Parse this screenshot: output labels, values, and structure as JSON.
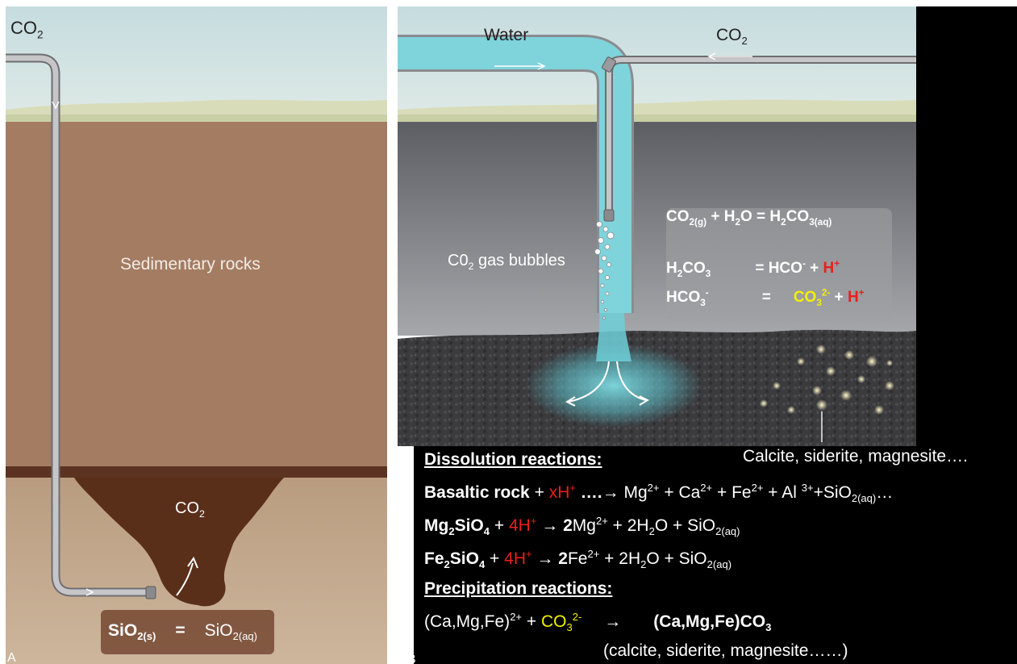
{
  "panel_a": {
    "corner_letter": "A",
    "co2_top": {
      "main": "CO",
      "sub": "2"
    },
    "rock_label": "Sedimentary rocks",
    "plume_co2": {
      "main": "CO",
      "sub": "2"
    },
    "bottom_eq": {
      "lhs": "SiO",
      "lhs_sub": "2(s)",
      "equals": "=",
      "rhs": "SiO",
      "rhs_sub": "2(aq)"
    }
  },
  "panel_b": {
    "corner_letter": "B",
    "water_label": "Water",
    "co2_label": {
      "main": "CO",
      "sub": "2"
    },
    "bubbles_label": {
      "pre": "C0",
      "sub": "2",
      "post": " gas bubbles"
    },
    "eq1": {
      "a": "CO",
      "a_sub": "2(g)",
      "b": " + H",
      "b_sub": "2",
      "c": "O = H",
      "c_sub": "2",
      "d": "CO",
      "d_sub": "3(aq)"
    },
    "eq2": {
      "a": "H",
      "a_sub": "2",
      "b": "CO",
      "b_sub": "3",
      "c": "= HCO",
      "c_sup": "-",
      "d": " + ",
      "h": "H",
      "h_sup": "+"
    },
    "eq3": {
      "a": "HCO",
      "a_sub": "3",
      "a_sup": "-",
      "eqsign": "=",
      "b": "CO",
      "b_sub": "3",
      "b_sup": "2-",
      "c": " + ",
      "h": "H",
      "h_sup": "+"
    },
    "minerals_callout": "Calcite, siderite, magnesite….",
    "dissolution_heading": "Dissolution reactions:",
    "rxn1": {
      "name": "Basaltic rock",
      "plus": " + ",
      "xh": "xH",
      "xh_sup": "+",
      "arrow": " ….→ ",
      "mg": "Mg",
      "mg_sup": "2+",
      "ca": " + Ca",
      "ca_sup": "2+",
      "fe": " + Fe",
      "fe_sup": "2+",
      "al": " + Al ",
      "al_sup": "3+",
      "si": "+SiO",
      "si_sub": "2(aq)",
      "tail": "…"
    },
    "rxn2": {
      "a": "Mg",
      "a_sub": "2",
      "b": "SiO",
      "b_sub": "4",
      "plus": " + ",
      "h": "4H",
      "h_sup": "+",
      "arrow": " → ",
      "c": "2",
      "d": "Mg",
      "d_sup": "2+",
      "e": " + 2H",
      "e_sub": "2",
      "f": "O + SiO",
      "f_sub": "2(aq)"
    },
    "rxn3": {
      "a": "Fe",
      "a_sub": "2",
      "b": "SiO",
      "b_sub": "4",
      "plus": " + ",
      "h": "4H",
      "h_sup": "+",
      "arrow": " → ",
      "c": "2",
      "d": "Fe",
      "d_sup": "2+",
      "e": " + 2H",
      "e_sub": "2",
      "f": "O + SiO",
      "f_sub": "2(aq)"
    },
    "precipitation_heading": "Precipitation reactions:",
    "rxn4": {
      "a": "(Ca,Mg,Fe)",
      "a_sup": "2+",
      "plus": " + ",
      "co3": "CO",
      "co3_sub": "3",
      "co3_sup": "2-",
      "arrow": "→",
      "product": "(Ca,Mg,Fe)CO",
      "product_sub": "3"
    },
    "rxn4_note": "(calcite, siderite, magnesite……)"
  },
  "colors": {
    "sky": "#c9dee0",
    "sediment": "#a47c62",
    "sandstone": "#c2a88d",
    "plume": "#5a2f1a",
    "grey_layer": "#77787d",
    "basalt": "#3a3a3c",
    "water": "#6fcfd8",
    "pipe": "#b5b5b8",
    "red_text": "#e8201b",
    "yellow_text": "#f4f000"
  }
}
